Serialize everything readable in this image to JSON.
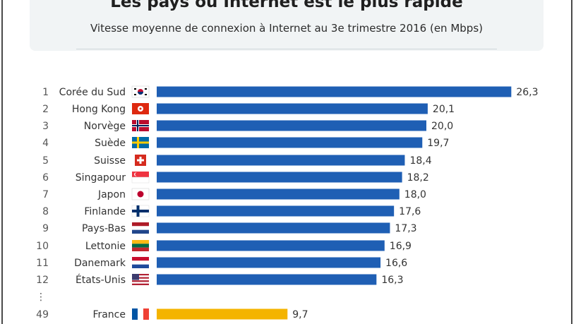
{
  "header": {
    "title": "Les pays où Internet est le plus rapide",
    "subtitle": "Vitesse moyenne de connexion à Internet au 3e trimestre 2016 (en Mbps)"
  },
  "chart_data": {
    "type": "bar",
    "orientation": "horizontal",
    "title": "Les pays où Internet est le plus rapide",
    "subtitle": "Vitesse moyenne de connexion à Internet au 3e trimestre 2016 (en Mbps)",
    "unit": "Mbps",
    "colors": {
      "default": "#1f5fb4",
      "highlight": "#f4b400"
    },
    "ellipsis": "⋮",
    "rows": [
      {
        "rank": "1",
        "country": "Corée du Sud",
        "value": 26.3,
        "label": "26,3",
        "flag": "south-korea"
      },
      {
        "rank": "2",
        "country": "Hong Kong",
        "value": 20.1,
        "label": "20,1",
        "flag": "hong-kong"
      },
      {
        "rank": "3",
        "country": "Norvège",
        "value": 20.0,
        "label": "20,0",
        "flag": "norway"
      },
      {
        "rank": "4",
        "country": "Suède",
        "value": 19.7,
        "label": "19,7",
        "flag": "sweden"
      },
      {
        "rank": "5",
        "country": "Suisse",
        "value": 18.4,
        "label": "18,4",
        "flag": "switzerland"
      },
      {
        "rank": "6",
        "country": "Singapour",
        "value": 18.2,
        "label": "18,2",
        "flag": "singapore"
      },
      {
        "rank": "7",
        "country": "Japon",
        "value": 18.0,
        "label": "18,0",
        "flag": "japan"
      },
      {
        "rank": "8",
        "country": "Finlande",
        "value": 17.6,
        "label": "17,6",
        "flag": "finland"
      },
      {
        "rank": "9",
        "country": "Pays-Bas",
        "value": 17.3,
        "label": "17,3",
        "flag": "netherlands"
      },
      {
        "rank": "10",
        "country": "Lettonie",
        "value": 16.9,
        "label": "16,9",
        "flag": "latvia"
      },
      {
        "rank": "11",
        "country": "Danemark",
        "value": 16.6,
        "label": "16,6",
        "flag": "denmark"
      },
      {
        "rank": "12",
        "country": "États-Unis",
        "value": 16.3,
        "label": "16,3",
        "flag": "united-states"
      },
      {
        "rank": "49",
        "country": "France",
        "value": 9.7,
        "label": "9,7",
        "flag": "france",
        "highlight": true
      }
    ]
  }
}
